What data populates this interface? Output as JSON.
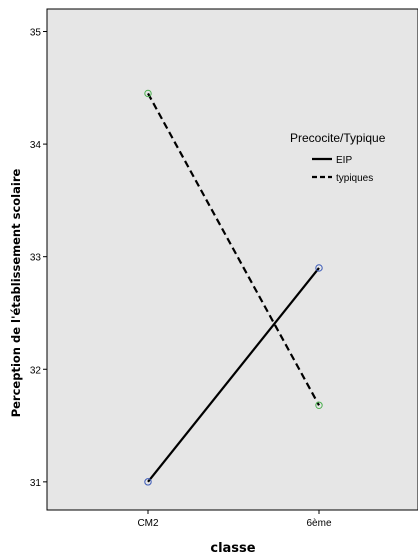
{
  "chart_data": {
    "type": "line",
    "xlabel": "classe",
    "ylabel": "Perception de l'établissement scolaire",
    "categories": [
      "CM2",
      "6ème"
    ],
    "ylim": [
      30.75,
      35.2
    ],
    "yticks": [
      31,
      32,
      33,
      34,
      35
    ],
    "ytick_labels": [
      "31",
      "32",
      "33",
      "34",
      "35"
    ],
    "grid": false,
    "background": "#e6e6e6",
    "legend": {
      "title": "Precocite/Typique",
      "placement": "top-right inside plot"
    },
    "series": [
      {
        "name": "EIP",
        "values": [
          31.0,
          32.9
        ],
        "line_style": "solid",
        "line_color": "#000000",
        "marker_color": "#3b5ab8"
      },
      {
        "name": "typiques",
        "values": [
          34.45,
          31.68
        ],
        "line_style": "dashed",
        "line_color": "#000000",
        "marker_color": "#4caf50"
      }
    ]
  }
}
